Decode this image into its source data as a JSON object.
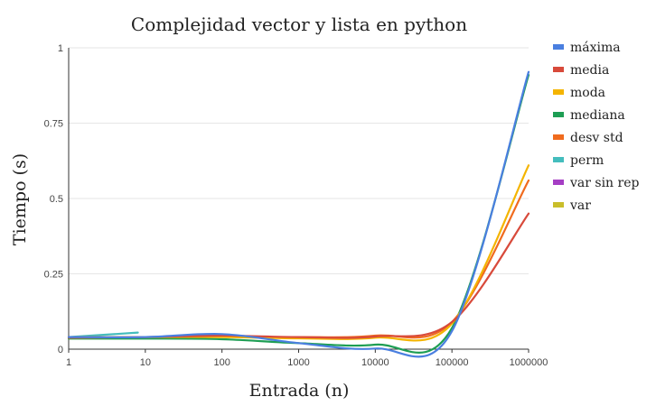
{
  "chart_data": {
    "type": "line",
    "title": "Complejidad vector y lista en python",
    "xlabel": "Entrada (n)",
    "ylabel": "Tiempo (s)",
    "x_scale": "log",
    "x_ticks": [
      1,
      10,
      100,
      1000,
      10000,
      100000,
      1000000
    ],
    "x_tick_labels": [
      "1",
      "10",
      "100",
      "1000",
      "10000",
      "100000",
      "1000000"
    ],
    "y_ticks": [
      0,
      0.25,
      0.5,
      0.75,
      1
    ],
    "y_tick_labels": [
      "0",
      "0.25",
      "0.5",
      "0.75",
      "1"
    ],
    "xlim": [
      1,
      1000000
    ],
    "ylim": [
      0,
      1
    ],
    "grid": "horizontal",
    "legend_position": "right",
    "series": [
      {
        "name": "máxima",
        "color": "#4a7fe0",
        "x": [
          1,
          10,
          100,
          1000,
          10000,
          100000,
          1000000
        ],
        "y": [
          0.04,
          0.04,
          0.05,
          0.02,
          0.002,
          0.06,
          0.92
        ]
      },
      {
        "name": "media",
        "color": "#d84a3b",
        "x": [
          1,
          10,
          100,
          1000,
          10000,
          100000,
          1000000
        ],
        "y": [
          0.038,
          0.04,
          0.045,
          0.04,
          0.042,
          0.09,
          0.45
        ]
      },
      {
        "name": "moda",
        "color": "#f4b400",
        "x": [
          1,
          10,
          100,
          1000,
          10000,
          100000,
          1000000
        ],
        "y": [
          0.038,
          0.04,
          0.04,
          0.036,
          0.038,
          0.085,
          0.61
        ]
      },
      {
        "name": "mediana",
        "color": "#1e9e54",
        "x": [
          1,
          10,
          100,
          1000,
          10000,
          100000,
          1000000
        ],
        "y": [
          0.035,
          0.035,
          0.033,
          0.02,
          0.015,
          0.07,
          0.91
        ]
      },
      {
        "name": "desv std",
        "color": "#f06b1e",
        "x": [
          1,
          10,
          100,
          1000,
          10000,
          100000,
          1000000
        ],
        "y": [
          0.04,
          0.04,
          0.042,
          0.04,
          0.045,
          0.09,
          0.56
        ]
      },
      {
        "name": "perm",
        "color": "#44bdbd",
        "x": [
          1,
          8
        ],
        "y": [
          0.04,
          0.055
        ]
      },
      {
        "name": "var sin rep",
        "color": "#a53ec4",
        "x": [],
        "y": []
      },
      {
        "name": "var",
        "color": "#c9be2a",
        "x": [],
        "y": []
      }
    ]
  }
}
